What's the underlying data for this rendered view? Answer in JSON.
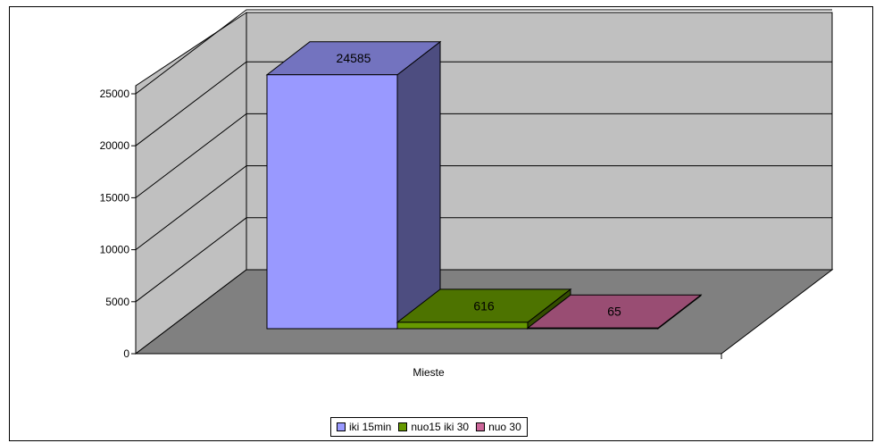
{
  "chart_data": {
    "type": "bar",
    "categories": [
      "Mieste"
    ],
    "series": [
      {
        "name": "iki 15min",
        "values": [
          24585
        ],
        "color": "#9999ff",
        "label": "24585"
      },
      {
        "name": "nuo15 iki 30",
        "values": [
          616
        ],
        "color": "#669900",
        "label": "616"
      },
      {
        "name": "nuo 30",
        "values": [
          65
        ],
        "color": "#cc6699",
        "label": "65"
      }
    ],
    "y_ticks": [
      "0",
      "5000",
      "10000",
      "15000",
      "20000",
      "25000"
    ],
    "ylim": [
      0,
      25000
    ],
    "grid": true,
    "legend_position": "bottom",
    "three_d": true,
    "colors": {
      "wall": "#c0c0c0",
      "floor": "#808080"
    }
  }
}
